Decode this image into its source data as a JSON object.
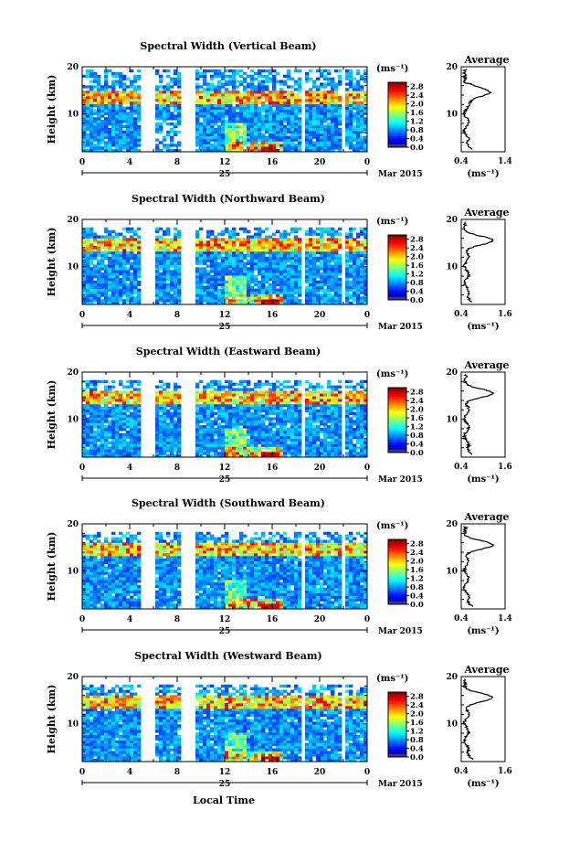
{
  "figure": {
    "bottom_label": "Local Time",
    "date_day": "25",
    "date_label": "Mar 2015"
  },
  "chart_data": [
    {
      "type": "heatmap",
      "title": "Spectral Width (Vertical Beam)",
      "ylabel": "Height (km)",
      "xlabel": "Local Time",
      "x_ticks": [
        "0",
        "4",
        "8",
        "12",
        "16",
        "20",
        "0"
      ],
      "xlim": [
        0,
        24
      ],
      "ylim": [
        2,
        20
      ],
      "y_ticks": [
        10,
        20
      ],
      "colorbar": {
        "unit": "(ms⁻¹)",
        "ticks": [
          "0.0",
          "0.4",
          "0.8",
          "1.2",
          "1.6",
          "2.0",
          "2.4",
          "2.8"
        ],
        "range": [
          0,
          3.0
        ]
      },
      "average": {
        "title": "Average",
        "unit": "(ms⁻¹)",
        "xlim": [
          0.4,
          1.4
        ],
        "x_ticks": [
          "0.4",
          "1.4"
        ],
        "ylim": [
          2,
          20
        ],
        "y_ticks": [
          10,
          20
        ]
      }
    },
    {
      "type": "heatmap",
      "title": "Spectral Width (Northward Beam)",
      "ylabel": "Height (km)",
      "xlabel": "Local Time",
      "x_ticks": [
        "0",
        "4",
        "8",
        "12",
        "16",
        "20",
        "0"
      ],
      "xlim": [
        0,
        24
      ],
      "ylim": [
        2,
        20
      ],
      "y_ticks": [
        10,
        20
      ],
      "colorbar": {
        "unit": "(ms⁻¹)",
        "ticks": [
          "0.0",
          "0.4",
          "0.8",
          "1.2",
          "1.6",
          "2.0",
          "2.4",
          "2.8"
        ],
        "range": [
          0,
          3.0
        ]
      },
      "average": {
        "title": "Average",
        "unit": "(ms⁻¹)",
        "xlim": [
          0.4,
          1.6
        ],
        "x_ticks": [
          "0.4",
          "1.6"
        ],
        "ylim": [
          2,
          20
        ],
        "y_ticks": [
          10,
          20
        ]
      }
    },
    {
      "type": "heatmap",
      "title": "Spectral Width (Eastward Beam)",
      "ylabel": "Height (km)",
      "xlabel": "Local Time",
      "x_ticks": [
        "0",
        "4",
        "8",
        "12",
        "16",
        "20",
        "0"
      ],
      "xlim": [
        0,
        24
      ],
      "ylim": [
        2,
        20
      ],
      "y_ticks": [
        10,
        20
      ],
      "colorbar": {
        "unit": "(ms⁻¹)",
        "ticks": [
          "0.0",
          "0.4",
          "0.8",
          "1.2",
          "1.6",
          "2.0",
          "2.4",
          "2.8"
        ],
        "range": [
          0,
          3.0
        ]
      },
      "average": {
        "title": "Average",
        "unit": "(ms⁻¹)",
        "xlim": [
          0.4,
          1.6
        ],
        "x_ticks": [
          "0.4",
          "1.6"
        ],
        "ylim": [
          2,
          20
        ],
        "y_ticks": [
          10,
          20
        ]
      }
    },
    {
      "type": "heatmap",
      "title": "Spectral Width (Southward Beam)",
      "ylabel": "Height (km)",
      "xlabel": "Local Time",
      "x_ticks": [
        "0",
        "4",
        "8",
        "12",
        "16",
        "20",
        "0"
      ],
      "xlim": [
        0,
        24
      ],
      "ylim": [
        2,
        20
      ],
      "y_ticks": [
        10,
        20
      ],
      "colorbar": {
        "unit": "(ms⁻¹)",
        "ticks": [
          "0.0",
          "0.4",
          "0.8",
          "1.2",
          "1.6",
          "2.0",
          "2.4",
          "2.8"
        ],
        "range": [
          0,
          3.0
        ]
      },
      "average": {
        "title": "Average",
        "unit": "(ms⁻¹)",
        "xlim": [
          0.4,
          1.4
        ],
        "x_ticks": [
          "0.4",
          "1.4"
        ],
        "ylim": [
          2,
          20
        ],
        "y_ticks": [
          10,
          20
        ]
      }
    },
    {
      "type": "heatmap",
      "title": "Spectral Width (Westward Beam)",
      "ylabel": "Height (km)",
      "xlabel": "Local Time",
      "x_ticks": [
        "0",
        "4",
        "8",
        "12",
        "16",
        "20",
        "0"
      ],
      "xlim": [
        0,
        24
      ],
      "ylim": [
        2,
        20
      ],
      "y_ticks": [
        10,
        20
      ],
      "colorbar": {
        "unit": "(ms⁻¹)",
        "ticks": [
          "0.0",
          "0.4",
          "0.8",
          "1.2",
          "1.6",
          "2.0",
          "2.4",
          "2.8"
        ],
        "range": [
          0,
          3.0
        ]
      },
      "average": {
        "title": "Average",
        "unit": "(ms⁻¹)",
        "xlim": [
          0.4,
          1.6
        ],
        "x_ticks": [
          "0.4",
          "1.6"
        ],
        "ylim": [
          2,
          20
        ],
        "y_ticks": [
          10,
          20
        ]
      }
    }
  ]
}
